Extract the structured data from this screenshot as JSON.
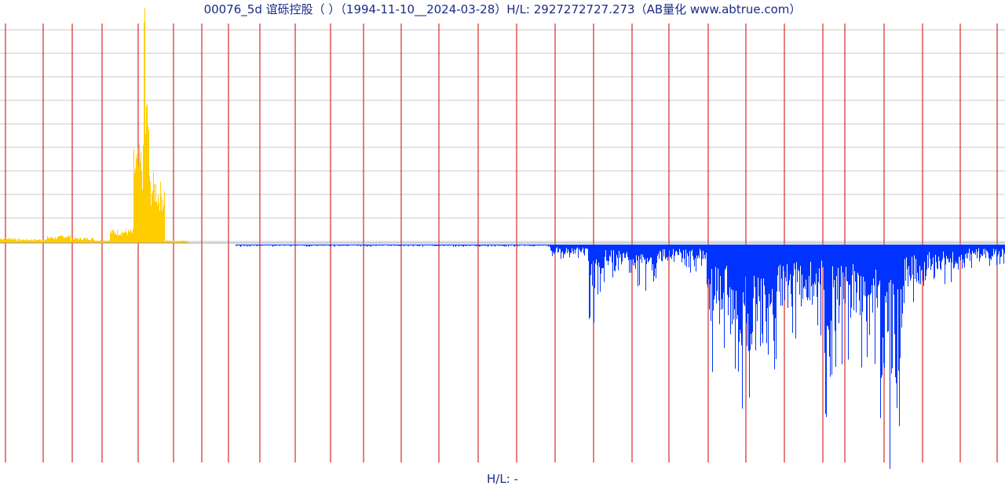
{
  "chart_data": {
    "type": "bar",
    "title": "00076_5d 谊砾控股（ ）（1994-11-10__2024-03-28）H/L: 2927272727.273（AB量化  www.abtrue.com）",
    "footer": "H/L: -",
    "xlabel": "",
    "ylabel": "",
    "grid": true,
    "series": [
      {
        "color": "#FFCC00",
        "description": "upper positive bars",
        "segments": [
          {
            "x_range": [
              0.0,
              0.02
            ],
            "level": 0.02
          },
          {
            "x_range": [
              0.02,
              0.06
            ],
            "level": 0.015
          },
          {
            "x_range": [
              0.06,
              0.077
            ],
            "level": 0.025
          },
          {
            "x_range": [
              0.077,
              0.09
            ],
            "level": 0.03
          },
          {
            "x_range": [
              0.09,
              0.12
            ],
            "level": 0.02
          },
          {
            "x_range": [
              0.12,
              0.14
            ],
            "level": 0.012
          },
          {
            "x_range": [
              0.14,
              0.17
            ],
            "level": 0.05
          },
          {
            "x_range": [
              0.17,
              0.183
            ],
            "level": 0.35
          },
          {
            "x_range": [
              0.183,
              0.185
            ],
            "level": 1.0
          },
          {
            "x_range": [
              0.185,
              0.19
            ],
            "level": 0.55
          },
          {
            "x_range": [
              0.19,
              0.2
            ],
            "level": 0.25
          },
          {
            "x_range": [
              0.2,
              0.21
            ],
            "level": 0.22
          },
          {
            "x_range": [
              0.21,
              0.24
            ],
            "level": 0.01
          }
        ]
      },
      {
        "color": "#0033FF",
        "description": "lower negative bars",
        "segments": [
          {
            "x_range": [
              0.3,
              0.7
            ],
            "level": 0.01
          },
          {
            "x_range": [
              0.7,
              0.75
            ],
            "level": 0.07
          },
          {
            "x_range": [
              0.75,
              0.77
            ],
            "level": 0.35
          },
          {
            "x_range": [
              0.77,
              0.8
            ],
            "level": 0.15
          },
          {
            "x_range": [
              0.8,
              0.84
            ],
            "level": 0.2
          },
          {
            "x_range": [
              0.84,
              0.9
            ],
            "level": 0.12
          },
          {
            "x_range": [
              0.9,
              0.94
            ],
            "level": 0.55
          },
          {
            "x_range": [
              0.94,
              0.98
            ],
            "level": 0.75
          },
          {
            "x_range": [
              0.98,
              1.0
            ],
            "level": 0.55
          },
          {
            "x_range": [
              1.0,
              1.05
            ],
            "level": 0.45
          },
          {
            "x_range": [
              1.05,
              1.06
            ],
            "level": 1.0
          },
          {
            "x_range": [
              1.06,
              1.12
            ],
            "level": 0.55
          },
          {
            "x_range": [
              1.12,
              1.15
            ],
            "level": 0.95
          },
          {
            "x_range": [
              1.15,
              1.18
            ],
            "level": 0.3
          },
          {
            "x_range": [
              1.18,
              1.23
            ],
            "level": 0.18
          },
          {
            "x_range": [
              1.23,
              1.28
            ],
            "level": 0.1
          }
        ]
      }
    ]
  },
  "colors": {
    "background": "#FFFFFF",
    "grid_horizontal": "#C8C8C8",
    "grid_vertical": "#CC0000",
    "upper_bars": "#FFCC00",
    "lower_bars": "#0033FF",
    "baseline": "#999999",
    "text": "#1A2A8A"
  }
}
